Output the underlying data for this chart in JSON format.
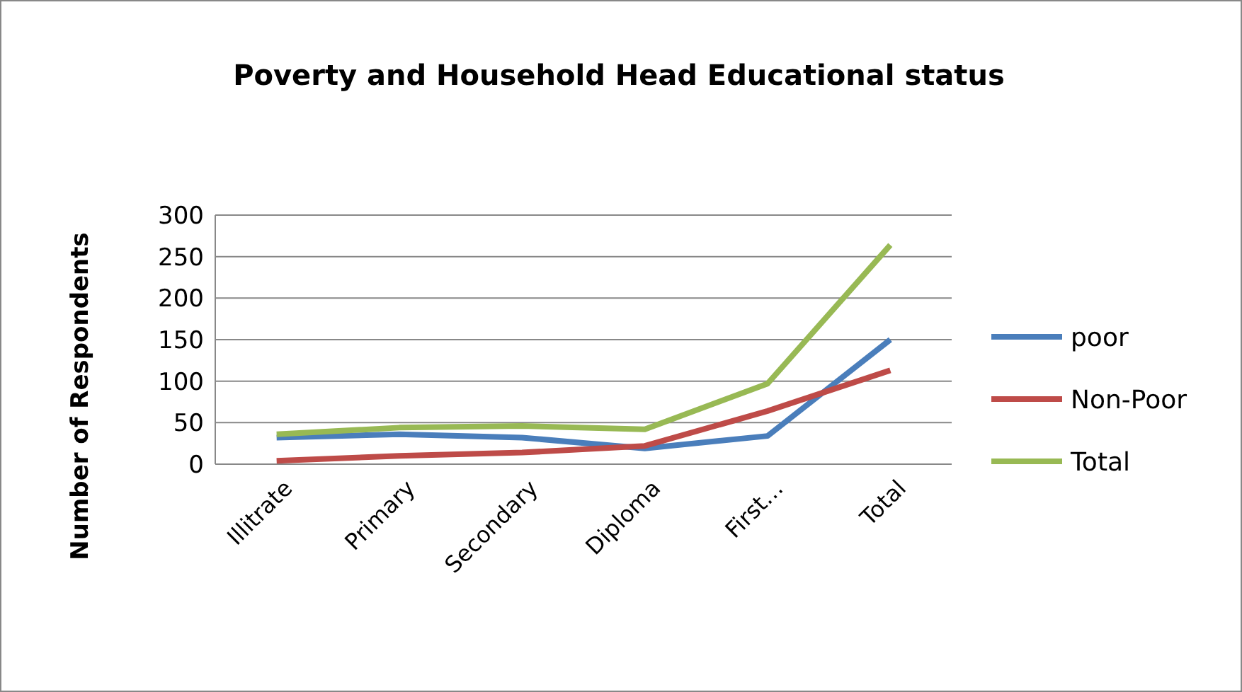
{
  "chart_data": {
    "type": "line",
    "title": "Poverty and Household Head Educational status",
    "ylabel": "Number of Respondents",
    "categories": [
      "Illitrate",
      "Primary",
      "Secondary",
      "Diploma",
      "First…",
      "Total"
    ],
    "series": [
      {
        "name": "poor",
        "color": "#4a7ebb",
        "values": [
          32,
          36,
          32,
          19,
          34,
          150
        ]
      },
      {
        "name": "Non-Poor",
        "color": "#be4b48",
        "values": [
          4,
          10,
          14,
          22,
          64,
          113
        ]
      },
      {
        "name": "Total",
        "color": "#98b954",
        "values": [
          36,
          44,
          46,
          42,
          97,
          264
        ]
      }
    ],
    "ylim": [
      0,
      300
    ],
    "yticks": [
      0,
      50,
      100,
      150,
      200,
      250,
      300
    ],
    "grid": "y",
    "legend": "right",
    "marker": "none",
    "line_style": "solid"
  }
}
